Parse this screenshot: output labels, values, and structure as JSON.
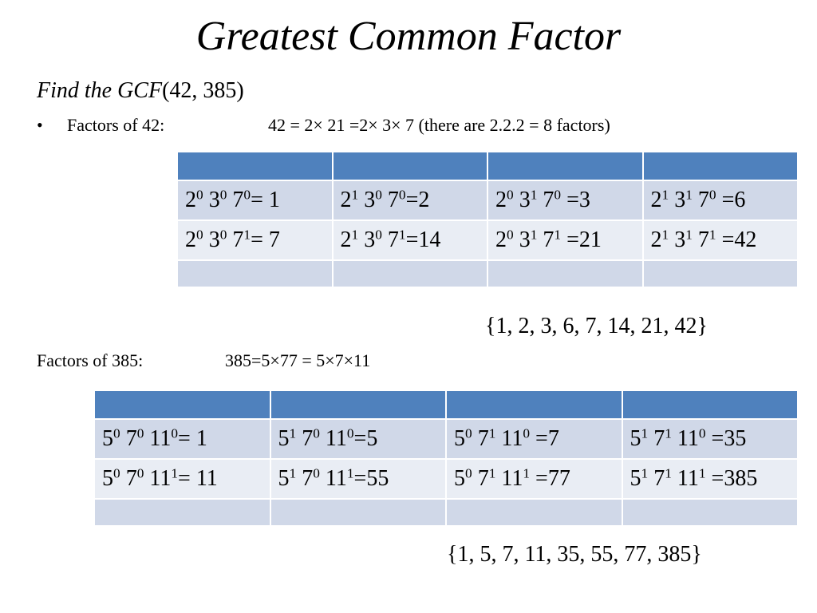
{
  "title": "Greatest Common Factor",
  "subtitle": {
    "italic": "Find the GCF",
    "args": "(42, 385)"
  },
  "factors42": {
    "bullet": "•",
    "label": "Factors of 42:",
    "equation": "42 = 2× 21 =2× 3× 7 (there are 2.2.2 = 8 factors)"
  },
  "table42": {
    "rows": [
      [
        {
          "parts": [
            {
              "b": "2",
              "e": "0"
            },
            {
              "b": " 3",
              "e": "0"
            },
            {
              "b": " 7",
              "e": "0"
            }
          ],
          "result": "= 1"
        },
        {
          "parts": [
            {
              "b": "2",
              "e": "1"
            },
            {
              "b": " 3",
              "e": "0"
            },
            {
              "b": " 7",
              "e": "0"
            }
          ],
          "result": "=2"
        },
        {
          "parts": [
            {
              "b": "2",
              "e": "0"
            },
            {
              "b": " 3",
              "e": "1"
            },
            {
              "b": " 7",
              "e": "0"
            }
          ],
          "result": " =3"
        },
        {
          "parts": [
            {
              "b": "2",
              "e": "1"
            },
            {
              "b": " 3",
              "e": "1"
            },
            {
              "b": " 7",
              "e": "0"
            }
          ],
          "result": " =6"
        }
      ],
      [
        {
          "parts": [
            {
              "b": "2",
              "e": "0"
            },
            {
              "b": " 3",
              "e": "0"
            },
            {
              "b": " 7",
              "e": "1"
            }
          ],
          "result": "= 7"
        },
        {
          "parts": [
            {
              "b": "2",
              "e": "1"
            },
            {
              "b": " 3",
              "e": "0"
            },
            {
              "b": " 7",
              "e": "1"
            }
          ],
          "result": "=14"
        },
        {
          "parts": [
            {
              "b": "2",
              "e": "0"
            },
            {
              "b": " 3",
              "e": "1"
            },
            {
              "b": " 7",
              "e": "1"
            }
          ],
          "result": " =21"
        },
        {
          "parts": [
            {
              "b": "2",
              "e": "1"
            },
            {
              "b": " 3",
              "e": "1"
            },
            {
              "b": " 7",
              "e": "1"
            }
          ],
          "result": " =42"
        }
      ]
    ],
    "factor_set": "{1, 2, 3, 6, 7, 14, 21, 42}"
  },
  "factors385": {
    "label": "Factors of 385:",
    "equation": "385=5×77 = 5×7×11"
  },
  "table385": {
    "rows": [
      [
        {
          "parts": [
            {
              "b": "5",
              "e": "0"
            },
            {
              "b": " 7",
              "e": "0"
            },
            {
              "b": " 11",
              "e": "0"
            }
          ],
          "result": "= 1"
        },
        {
          "parts": [
            {
              "b": "5",
              "e": "1"
            },
            {
              "b": " 7",
              "e": "0"
            },
            {
              "b": " 11",
              "e": "0"
            }
          ],
          "result": "=5"
        },
        {
          "parts": [
            {
              "b": "5",
              "e": "0"
            },
            {
              "b": " 7",
              "e": "1"
            },
            {
              "b": " 11",
              "e": "0"
            }
          ],
          "result": " =7"
        },
        {
          "parts": [
            {
              "b": "5",
              "e": "1"
            },
            {
              "b": " 7",
              "e": "1"
            },
            {
              "b": " 11",
              "e": "0"
            }
          ],
          "result": " =35"
        }
      ],
      [
        {
          "parts": [
            {
              "b": "5",
              "e": "0"
            },
            {
              "b": " 7",
              "e": "0"
            },
            {
              "b": " 11",
              "e": "1"
            }
          ],
          "result": "= 11"
        },
        {
          "parts": [
            {
              "b": "5",
              "e": "1"
            },
            {
              "b": " 7",
              "e": "0"
            },
            {
              "b": " 11",
              "e": "1"
            }
          ],
          "result": "=55"
        },
        {
          "parts": [
            {
              "b": "5",
              "e": "0"
            },
            {
              "b": " 7",
              "e": "1"
            },
            {
              "b": " 11",
              "e": "1"
            }
          ],
          "result": " =77"
        },
        {
          "parts": [
            {
              "b": "5",
              "e": "1"
            },
            {
              "b": " 7",
              "e": "1"
            },
            {
              "b": " 11",
              "e": "1"
            }
          ],
          "result": " =385"
        }
      ]
    ],
    "factor_set": "{1, 5, 7, 11, 35, 55, 77, 385}"
  },
  "colors": {
    "header": "#4f81bd",
    "row_odd": "#d0d8e8",
    "row_even": "#e9edf4"
  }
}
